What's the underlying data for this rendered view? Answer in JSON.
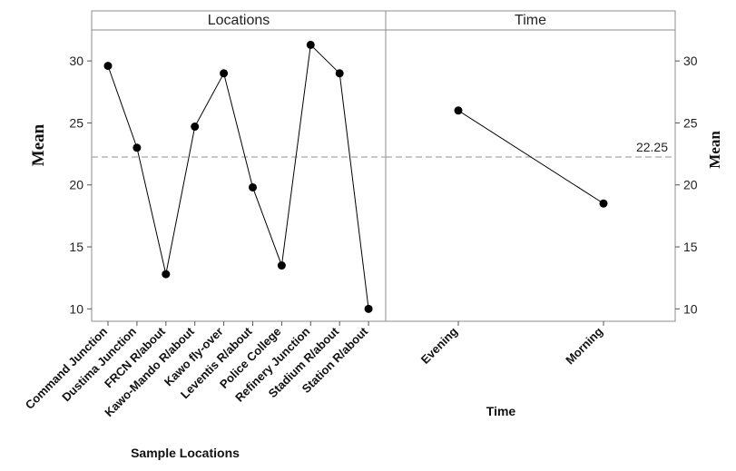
{
  "chart_data": {
    "type": "line",
    "title": "",
    "ylabel_left": "Mean",
    "ylabel_right": "Mean",
    "ylim": [
      9,
      32.5
    ],
    "yticks": [
      10,
      15,
      20,
      25,
      30
    ],
    "reference_line": {
      "value": 22.25,
      "label": "22.25"
    },
    "panels": [
      {
        "name": "Locations",
        "xlabel": "Sample Locations",
        "categories": [
          "Command Junction",
          "Dustima Junction",
          "FRCN R/about",
          "Kawo-Mando R/about",
          "Kawo fly-over",
          "Leventis R/about",
          "Police College",
          "Refinery Junction",
          "Stadium R/about",
          "Station R/about"
        ],
        "values": [
          29.6,
          23.0,
          12.8,
          24.7,
          29.0,
          19.8,
          13.5,
          31.3,
          29.0,
          10.0
        ]
      },
      {
        "name": "Time",
        "xlabel": "Time",
        "categories": [
          "Evening",
          "Morning"
        ],
        "values": [
          26.0,
          18.5
        ]
      }
    ]
  }
}
